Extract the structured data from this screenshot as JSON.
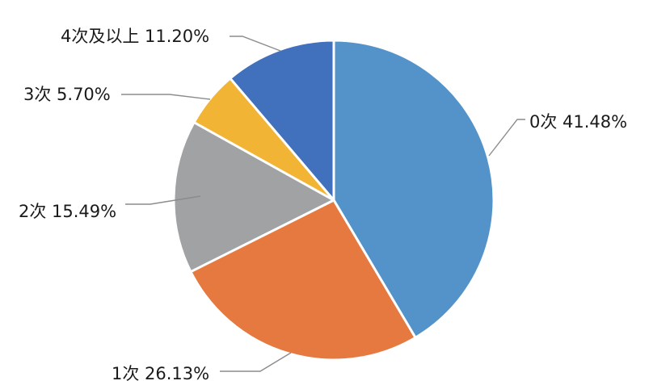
{
  "chart_data": {
    "type": "pie",
    "title": "",
    "legend": "none",
    "slices": [
      {
        "label": "0次",
        "value": 41.48,
        "display": "0次 41.48%",
        "color": "#5393c9"
      },
      {
        "label": "1次",
        "value": 26.13,
        "display": "1次 26.13%",
        "color": "#e57940"
      },
      {
        "label": "2次",
        "value": 15.49,
        "display": "2次 15.49%",
        "color": "#a1a2a4"
      },
      {
        "label": "3次",
        "value": 5.7,
        "display": "3次 5.70%",
        "color": "#f2b434"
      },
      {
        "label": "4次及以上",
        "value": 11.2,
        "display": "4次及以上 11.20%",
        "color": "#4171bc"
      }
    ]
  }
}
